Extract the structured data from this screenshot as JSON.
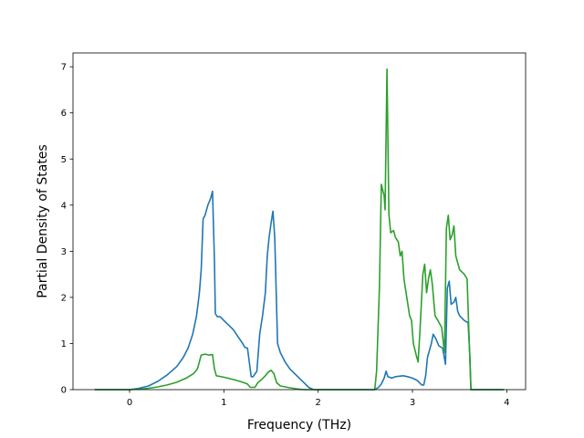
{
  "chart_data": {
    "type": "line",
    "xlabel": "Frequency (THz)",
    "ylabel": "Partial Density of States",
    "xlim": [
      -0.6,
      4.2
    ],
    "ylim": [
      0,
      7.3
    ],
    "xticks": [
      0,
      1,
      2,
      3,
      4
    ],
    "yticks": [
      0,
      1,
      2,
      3,
      4,
      5,
      6,
      7
    ],
    "grid": false,
    "legend": "none",
    "series": [
      {
        "color": "#1f77b4",
        "points": [
          [
            -0.37,
            0
          ],
          [
            0.0,
            0.0
          ],
          [
            0.1,
            0.03
          ],
          [
            0.2,
            0.08
          ],
          [
            0.3,
            0.18
          ],
          [
            0.4,
            0.32
          ],
          [
            0.5,
            0.5
          ],
          [
            0.57,
            0.7
          ],
          [
            0.62,
            0.9
          ],
          [
            0.67,
            1.2
          ],
          [
            0.71,
            1.6
          ],
          [
            0.74,
            2.1
          ],
          [
            0.76,
            2.6
          ],
          [
            0.78,
            3.7
          ],
          [
            0.8,
            3.78
          ],
          [
            0.83,
            4.0
          ],
          [
            0.86,
            4.15
          ],
          [
            0.88,
            4.3
          ],
          [
            0.9,
            2.8
          ],
          [
            0.91,
            1.65
          ],
          [
            0.93,
            1.58
          ],
          [
            0.96,
            1.58
          ],
          [
            1.0,
            1.5
          ],
          [
            1.05,
            1.4
          ],
          [
            1.1,
            1.3
          ],
          [
            1.15,
            1.15
          ],
          [
            1.2,
            1.0
          ],
          [
            1.22,
            0.92
          ],
          [
            1.25,
            0.9
          ],
          [
            1.27,
            0.6
          ],
          [
            1.29,
            0.28
          ],
          [
            1.31,
            0.28
          ],
          [
            1.35,
            0.4
          ],
          [
            1.38,
            1.2
          ],
          [
            1.41,
            1.6
          ],
          [
            1.44,
            2.1
          ],
          [
            1.46,
            2.9
          ],
          [
            1.48,
            3.3
          ],
          [
            1.5,
            3.6
          ],
          [
            1.52,
            3.87
          ],
          [
            1.54,
            3.3
          ],
          [
            1.57,
            1.0
          ],
          [
            1.6,
            0.8
          ],
          [
            1.65,
            0.6
          ],
          [
            1.7,
            0.45
          ],
          [
            1.75,
            0.35
          ],
          [
            1.8,
            0.25
          ],
          [
            1.85,
            0.15
          ],
          [
            1.9,
            0.05
          ],
          [
            1.95,
            0.0
          ],
          [
            2.6,
            0.0
          ],
          [
            2.64,
            0.05
          ],
          [
            2.67,
            0.12
          ],
          [
            2.7,
            0.25
          ],
          [
            2.72,
            0.4
          ],
          [
            2.74,
            0.28
          ],
          [
            2.78,
            0.25
          ],
          [
            2.82,
            0.28
          ],
          [
            2.9,
            0.3
          ],
          [
            2.95,
            0.28
          ],
          [
            3.0,
            0.25
          ],
          [
            3.05,
            0.2
          ],
          [
            3.1,
            0.1
          ],
          [
            3.12,
            0.1
          ],
          [
            3.14,
            0.3
          ],
          [
            3.16,
            0.7
          ],
          [
            3.2,
            1.0
          ],
          [
            3.22,
            1.2
          ],
          [
            3.25,
            1.1
          ],
          [
            3.28,
            0.95
          ],
          [
            3.32,
            0.9
          ],
          [
            3.35,
            0.55
          ],
          [
            3.37,
            2.2
          ],
          [
            3.39,
            2.35
          ],
          [
            3.41,
            1.85
          ],
          [
            3.44,
            1.9
          ],
          [
            3.46,
            2.0
          ],
          [
            3.48,
            1.7
          ],
          [
            3.5,
            1.6
          ],
          [
            3.55,
            1.5
          ],
          [
            3.59,
            1.45
          ],
          [
            3.61,
            0.7
          ],
          [
            3.62,
            0.0
          ],
          [
            3.97,
            0
          ]
        ]
      },
      {
        "color": "#2ca02c",
        "points": [
          [
            -0.37,
            0
          ],
          [
            0.0,
            0.0
          ],
          [
            0.1,
            0.01
          ],
          [
            0.2,
            0.03
          ],
          [
            0.3,
            0.06
          ],
          [
            0.4,
            0.1
          ],
          [
            0.5,
            0.16
          ],
          [
            0.6,
            0.25
          ],
          [
            0.68,
            0.35
          ],
          [
            0.72,
            0.45
          ],
          [
            0.76,
            0.75
          ],
          [
            0.8,
            0.77
          ],
          [
            0.84,
            0.75
          ],
          [
            0.88,
            0.76
          ],
          [
            0.9,
            0.45
          ],
          [
            0.92,
            0.3
          ],
          [
            1.0,
            0.27
          ],
          [
            1.1,
            0.22
          ],
          [
            1.2,
            0.16
          ],
          [
            1.25,
            0.12
          ],
          [
            1.28,
            0.05
          ],
          [
            1.33,
            0.05
          ],
          [
            1.36,
            0.15
          ],
          [
            1.4,
            0.22
          ],
          [
            1.44,
            0.3
          ],
          [
            1.47,
            0.38
          ],
          [
            1.5,
            0.42
          ],
          [
            1.53,
            0.35
          ],
          [
            1.56,
            0.15
          ],
          [
            1.6,
            0.08
          ],
          [
            1.7,
            0.04
          ],
          [
            1.8,
            0.01
          ],
          [
            1.85,
            0.0
          ],
          [
            2.6,
            0.0
          ],
          [
            2.62,
            0.4
          ],
          [
            2.65,
            2.2
          ],
          [
            2.67,
            4.45
          ],
          [
            2.7,
            4.2
          ],
          [
            2.71,
            3.9
          ],
          [
            2.73,
            6.95
          ],
          [
            2.75,
            3.8
          ],
          [
            2.77,
            3.4
          ],
          [
            2.8,
            3.45
          ],
          [
            2.82,
            3.3
          ],
          [
            2.85,
            3.2
          ],
          [
            2.87,
            2.9
          ],
          [
            2.89,
            3.0
          ],
          [
            2.91,
            2.4
          ],
          [
            2.94,
            2.0
          ],
          [
            2.97,
            1.6
          ],
          [
            2.99,
            1.5
          ],
          [
            3.01,
            1.0
          ],
          [
            3.04,
            0.75
          ],
          [
            3.06,
            0.6
          ],
          [
            3.08,
            1.3
          ],
          [
            3.11,
            2.5
          ],
          [
            3.13,
            2.72
          ],
          [
            3.15,
            2.1
          ],
          [
            3.17,
            2.4
          ],
          [
            3.19,
            2.6
          ],
          [
            3.21,
            2.3
          ],
          [
            3.24,
            1.6
          ],
          [
            3.27,
            1.5
          ],
          [
            3.31,
            1.35
          ],
          [
            3.34,
            0.8
          ],
          [
            3.36,
            3.5
          ],
          [
            3.38,
            3.78
          ],
          [
            3.4,
            3.25
          ],
          [
            3.42,
            3.35
          ],
          [
            3.44,
            3.55
          ],
          [
            3.46,
            2.9
          ],
          [
            3.5,
            2.6
          ],
          [
            3.55,
            2.5
          ],
          [
            3.58,
            2.4
          ],
          [
            3.61,
            0.6
          ],
          [
            3.62,
            0.0
          ],
          [
            3.97,
            0
          ]
        ]
      }
    ]
  }
}
